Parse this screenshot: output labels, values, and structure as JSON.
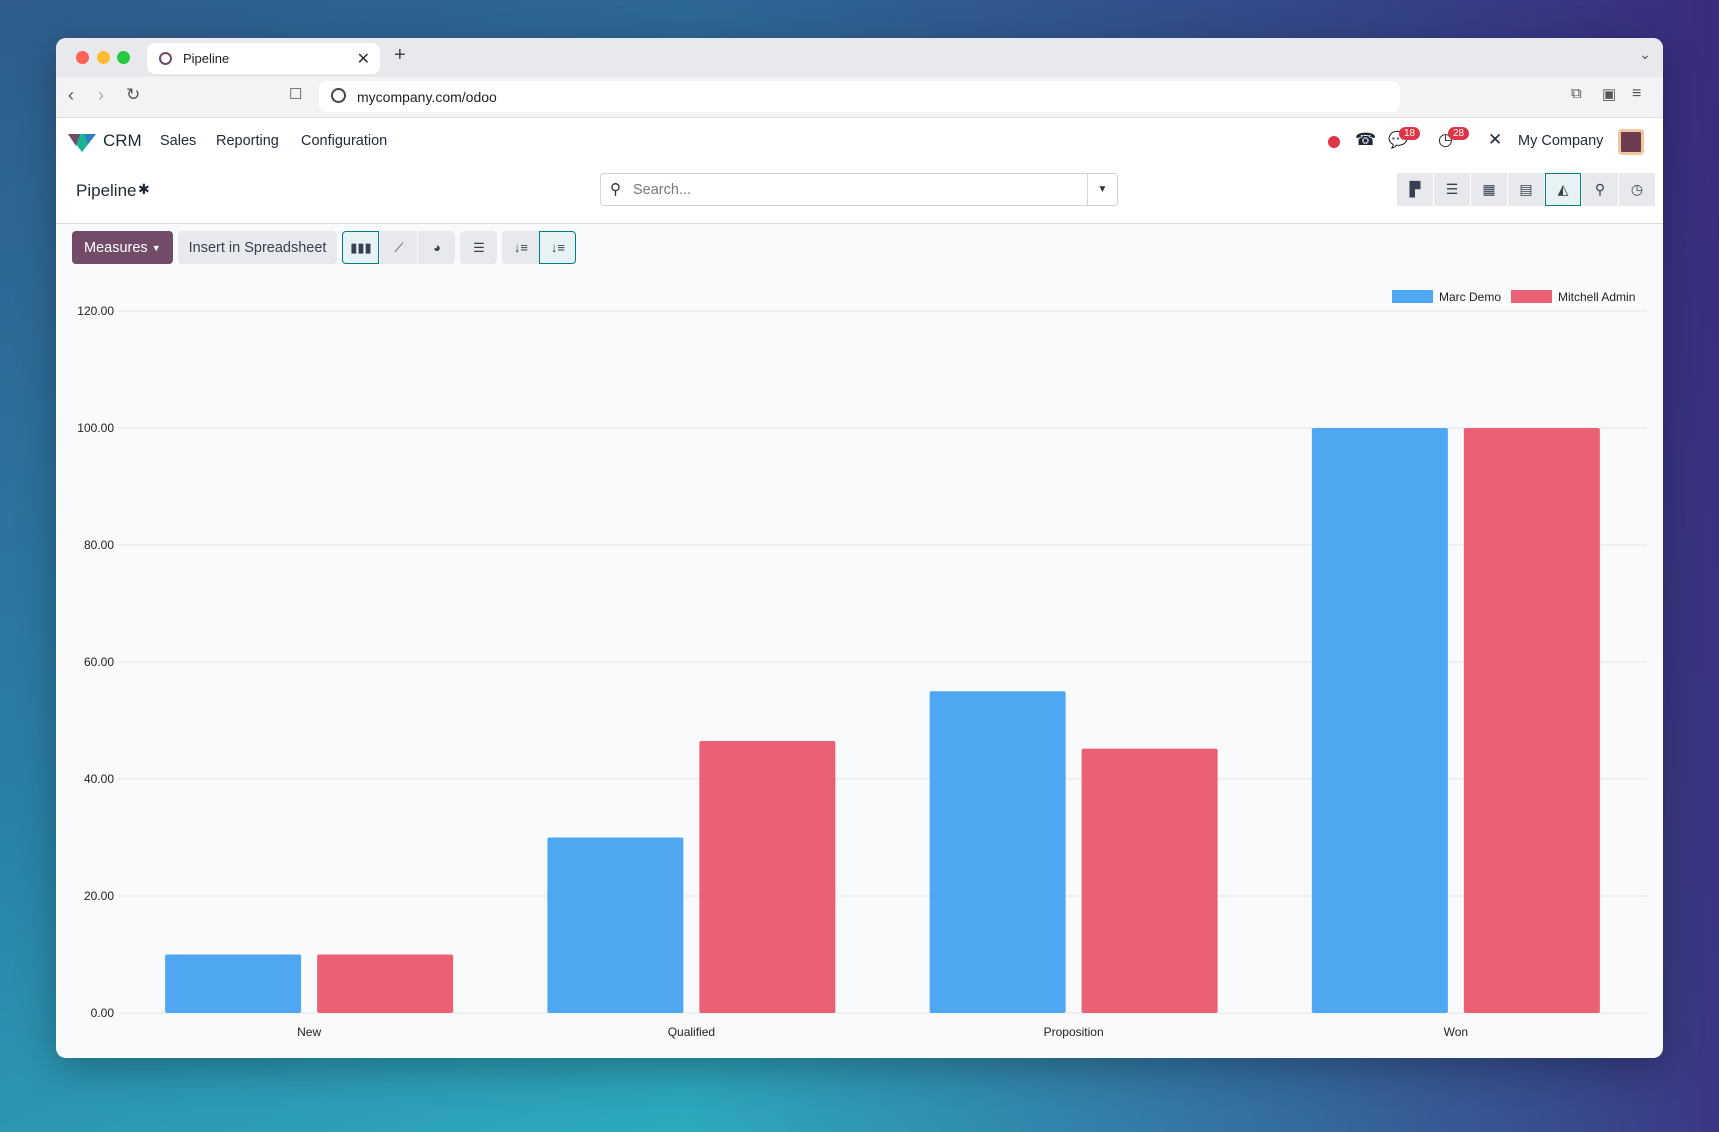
{
  "browser": {
    "tab_title": "Pipeline",
    "url": "mycompany.com/odoo"
  },
  "navbar": {
    "app": "CRM",
    "menu": [
      "Sales",
      "Reporting",
      "Configuration"
    ],
    "messages_count": "18",
    "activities_count": "28",
    "company": "My Company"
  },
  "control_panel": {
    "title": "Pipeline",
    "search_placeholder": "Search...",
    "views": [
      "kanban-icon",
      "list-icon",
      "calendar-icon",
      "pivot-icon",
      "graph-icon",
      "map-icon",
      "activity-icon"
    ],
    "active_view": "graph-icon"
  },
  "toolbar": {
    "measures": "Measures",
    "insert": "Insert in Spreadsheet",
    "chart_types": [
      "bar-chart-icon",
      "line-chart-icon",
      "pie-chart-icon"
    ],
    "active_chart": "bar-chart-icon"
  },
  "chart_data": {
    "type": "bar",
    "categories": [
      "New",
      "Qualified",
      "Proposition",
      "Won"
    ],
    "series": [
      {
        "name": "Marc Demo",
        "color": "#4fa7f2",
        "values": [
          10,
          30,
          55,
          100
        ]
      },
      {
        "name": "Mitchell Admin",
        "color": "#ea6175",
        "values": [
          10,
          46.5,
          45.2,
          100
        ]
      }
    ],
    "ylim": [
      0,
      120
    ],
    "yticks": [
      "0.00",
      "20.00",
      "40.00",
      "60.00",
      "80.00",
      "100.00",
      "120.00"
    ],
    "grid": true,
    "legend": "top-right"
  }
}
